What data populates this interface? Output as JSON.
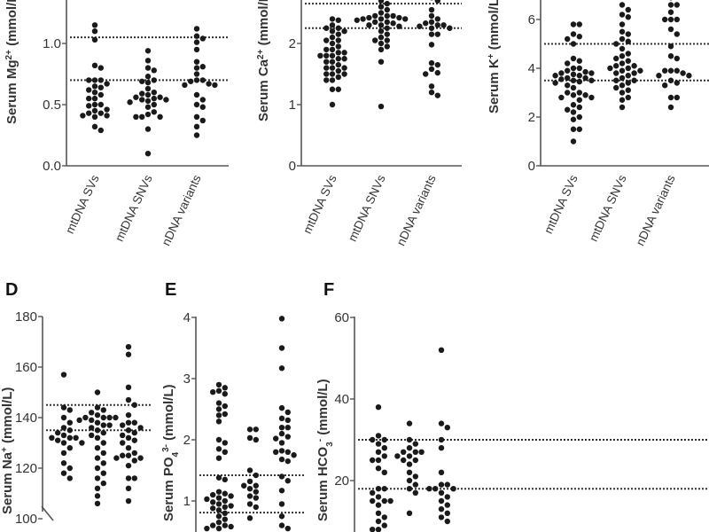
{
  "chart_data": [
    {
      "type": "scatter",
      "panel": "",
      "ylabel": [
        {
          "t": "Serum Mg"
        },
        {
          "t": "2+",
          "s": "sup"
        },
        {
          "t": " (mmol/L)"
        }
      ],
      "yticks": [
        "0.0",
        "0.5",
        "1.0"
      ],
      "reference_lines": [
        1.05,
        0.7
      ],
      "categories": [
        "mtDNA SVs",
        "mtDNA SNVs",
        "nDNA variants"
      ],
      "series": [
        {
          "values": [
            1.15,
            1.1,
            1.03,
            0.82,
            0.8,
            0.7,
            0.7,
            0.7,
            0.67,
            0.65,
            0.64,
            0.62,
            0.6,
            0.58,
            0.55,
            0.55,
            0.5,
            0.5,
            0.49,
            0.46,
            0.45,
            0.43,
            0.43,
            0.41,
            0.4,
            0.41,
            0.32,
            0.29
          ]
        },
        {
          "values": [
            0.94,
            0.86,
            0.8,
            0.78,
            0.73,
            0.7,
            0.69,
            0.68,
            0.63,
            0.6,
            0.59,
            0.58,
            0.56,
            0.56,
            0.55,
            0.54,
            0.54,
            0.53,
            0.52,
            0.5,
            0.48,
            0.44,
            0.42,
            0.4,
            0.4,
            0.4,
            0.3,
            0.1
          ]
        },
        {
          "values": [
            1.12,
            1.06,
            1.04,
            1.01,
            0.95,
            0.85,
            0.81,
            0.8,
            0.75,
            0.7,
            0.7,
            0.69,
            0.67,
            0.66,
            0.66,
            0.58,
            0.54,
            0.5,
            0.48,
            0.4,
            0.37,
            0.32,
            0.25
          ]
        }
      ]
    },
    {
      "type": "scatter",
      "panel": "",
      "ylabel": [
        {
          "t": "Serum Ca"
        },
        {
          "t": "2+",
          "s": "sup"
        },
        {
          "t": " (mmol/L)"
        }
      ],
      "yticks": [
        "0",
        "1",
        "2"
      ],
      "reference_lines": [
        2.65,
        2.25
      ],
      "categories": [
        "mtDNA SVs",
        "mtDNA SNVs",
        "nDNA variants"
      ],
      "series": [
        {
          "values": [
            2.4,
            2.38,
            2.3,
            2.25,
            2.25,
            2.2,
            2.2,
            2.15,
            2.1,
            2.05,
            2.05,
            2.0,
            1.95,
            1.9,
            1.9,
            1.85,
            1.85,
            1.8,
            1.8,
            1.8,
            1.75,
            1.75,
            1.7,
            1.7,
            1.65,
            1.6,
            1.6,
            1.6,
            1.55,
            1.5,
            1.5,
            1.5,
            1.45,
            1.4,
            1.4,
            1.25,
            1.25,
            1.0
          ]
        },
        {
          "values": [
            2.7,
            2.65,
            2.6,
            2.55,
            2.5,
            2.45,
            2.45,
            2.45,
            2.42,
            2.42,
            2.4,
            2.4,
            2.4,
            2.38,
            2.35,
            2.35,
            2.33,
            2.3,
            2.3,
            2.28,
            2.25,
            2.2,
            2.15,
            2.1,
            2.05,
            2.05,
            2.0,
            1.95,
            1.9,
            1.7,
            0.97
          ]
        },
        {
          "values": [
            2.75,
            2.7,
            2.55,
            2.45,
            2.4,
            2.35,
            2.33,
            2.3,
            2.3,
            2.28,
            2.25,
            2.25,
            2.15,
            2.15,
            1.98,
            1.68,
            1.65,
            1.58,
            1.52,
            1.5,
            1.3,
            1.2,
            1.15
          ]
        }
      ]
    },
    {
      "type": "scatter",
      "panel": "",
      "ylabel": [
        {
          "t": "Serum K"
        },
        {
          "t": "+",
          "s": "sup"
        },
        {
          "t": " (mmol/L)"
        }
      ],
      "yticks": [
        "0",
        "2",
        "4",
        "6"
      ],
      "reference_lines": [
        5.0,
        3.5
      ],
      "categories": [
        "mtDNA SVs",
        "mtDNA SNVs",
        "nDNA variants"
      ],
      "series": [
        {
          "values": [
            5.8,
            5.8,
            5.4,
            5.3,
            5.2,
            5.0,
            4.4,
            4.3,
            4.2,
            4.0,
            4.0,
            3.9,
            3.85,
            3.8,
            3.8,
            3.75,
            3.7,
            3.7,
            3.6,
            3.6,
            3.55,
            3.5,
            3.5,
            3.45,
            3.4,
            3.3,
            3.2,
            3.0,
            3.0,
            2.9,
            2.9,
            2.8,
            2.8,
            2.7,
            2.5,
            2.4,
            2.3,
            2.2,
            2.0,
            1.9,
            1.5,
            1.5,
            1.0
          ]
        },
        {
          "values": [
            6.6,
            6.4,
            6.2,
            6.1,
            5.8,
            5.5,
            5.4,
            5.2,
            5.1,
            5.0,
            4.8,
            4.6,
            4.5,
            4.4,
            4.3,
            4.2,
            4.1,
            4.1,
            4.0,
            4.0,
            3.9,
            3.9,
            3.8,
            3.8,
            3.7,
            3.6,
            3.5,
            3.5,
            3.4,
            3.3,
            3.2,
            3.1,
            3.0,
            2.8,
            2.7,
            2.4
          ]
        },
        {
          "values": [
            6.9,
            6.6,
            6.6,
            6.3,
            6.0,
            6.0,
            6.0,
            5.6,
            5.4,
            4.9,
            4.5,
            4.4,
            3.9,
            3.9,
            3.9,
            3.8,
            3.7,
            3.7,
            3.5,
            3.4,
            3.3,
            2.8,
            2.8,
            2.4
          ]
        }
      ]
    },
    {
      "type": "scatter",
      "panel": "D",
      "ylabel": [
        {
          "t": "Serum Na"
        },
        {
          "t": "+",
          "s": "sup"
        },
        {
          "t": " (mmol/L)"
        }
      ],
      "yticks": [
        "100",
        "120",
        "140",
        "160",
        "180"
      ],
      "reference_lines": [
        145,
        135
      ],
      "categories": [],
      "series": [
        {
          "values": [
            157,
            144,
            143,
            140,
            138,
            136,
            135,
            134,
            133,
            132,
            132,
            132,
            131,
            130,
            130,
            128,
            126,
            122,
            120,
            118,
            116
          ]
        },
        {
          "values": [
            150,
            144,
            143,
            142,
            141,
            140,
            140,
            140,
            140,
            139,
            139,
            138,
            137,
            137,
            136,
            135,
            134,
            133,
            132,
            130,
            128,
            126,
            124,
            122,
            120,
            118,
            116,
            114,
            112,
            109,
            106
          ]
        },
        {
          "values": [
            168,
            165,
            152,
            147,
            145,
            141,
            138,
            138,
            137,
            136,
            135,
            134,
            133,
            132,
            131,
            130,
            128,
            126,
            125,
            125,
            124,
            124,
            123,
            121,
            116,
            116,
            112,
            107
          ]
        }
      ]
    },
    {
      "type": "scatter",
      "panel": "E",
      "ylabel": [
        {
          "t": "Serum PO"
        },
        {
          "t": "4",
          "s": "sub"
        },
        {
          "t": "3-",
          "s": "sup"
        },
        {
          "t": " (mmol/L)"
        }
      ],
      "yticks": [
        "1",
        "2",
        "3",
        "4"
      ],
      "reference_lines": [
        1.42,
        0.81
      ],
      "categories": [],
      "series": [
        {
          "values": [
            2.9,
            2.85,
            2.8,
            2.78,
            2.75,
            2.6,
            2.55,
            2.5,
            2.42,
            2.4,
            2.3,
            2.0,
            1.95,
            1.85,
            1.8,
            1.7,
            1.38,
            1.35,
            1.15,
            1.12,
            1.1,
            1.08,
            1.05,
            1.03,
            1.0,
            0.98,
            0.95,
            0.92,
            0.9,
            0.88,
            0.85,
            0.8,
            0.75,
            0.7,
            0.65,
            0.6,
            0.6,
            0.58,
            0.55,
            0.55
          ]
        },
        {
          "values": [
            2.17,
            2.17,
            2.03,
            2.0,
            1.5,
            1.42,
            1.32,
            1.25,
            1.25,
            1.2,
            1.15,
            1.08,
            1.05,
            0.95,
            0.9,
            0.72
          ]
        },
        {
          "values": [
            3.98,
            3.5,
            3.17,
            2.52,
            2.45,
            2.35,
            2.32,
            2.2,
            2.2,
            2.1,
            2.05,
            2.02,
            1.95,
            1.82,
            1.8,
            1.8,
            1.75,
            1.68,
            1.65,
            1.4,
            1.33,
            1.17,
            0.95,
            0.75,
            0.6,
            0.55
          ]
        }
      ]
    },
    {
      "type": "scatter",
      "panel": "F",
      "ylabel": [
        {
          "t": "Serum HCO"
        },
        {
          "t": "3",
          "s": "sub"
        },
        {
          "t": "-",
          "s": "sup"
        },
        {
          "t": " (mmol/L)"
        }
      ],
      "yticks": [
        "20",
        "40",
        "60"
      ],
      "reference_lines": [
        30,
        18
      ],
      "categories": [],
      "series": [
        {
          "values": [
            38,
            31,
            30,
            30,
            29,
            28,
            27,
            26,
            25,
            25,
            23,
            22,
            18,
            18,
            17,
            16,
            15,
            15,
            15,
            14,
            12,
            11,
            10,
            9,
            8,
            8
          ]
        },
        {
          "values": [
            34,
            30,
            29,
            28,
            27,
            27,
            27,
            26,
            26,
            25,
            25,
            24,
            22,
            21,
            20,
            19,
            18,
            17,
            12
          ]
        },
        {
          "values": [
            52,
            34,
            33,
            30,
            28,
            22,
            19,
            19,
            18,
            18,
            18,
            17,
            16,
            15,
            14,
            13,
            12,
            11,
            10
          ]
        }
      ]
    }
  ]
}
